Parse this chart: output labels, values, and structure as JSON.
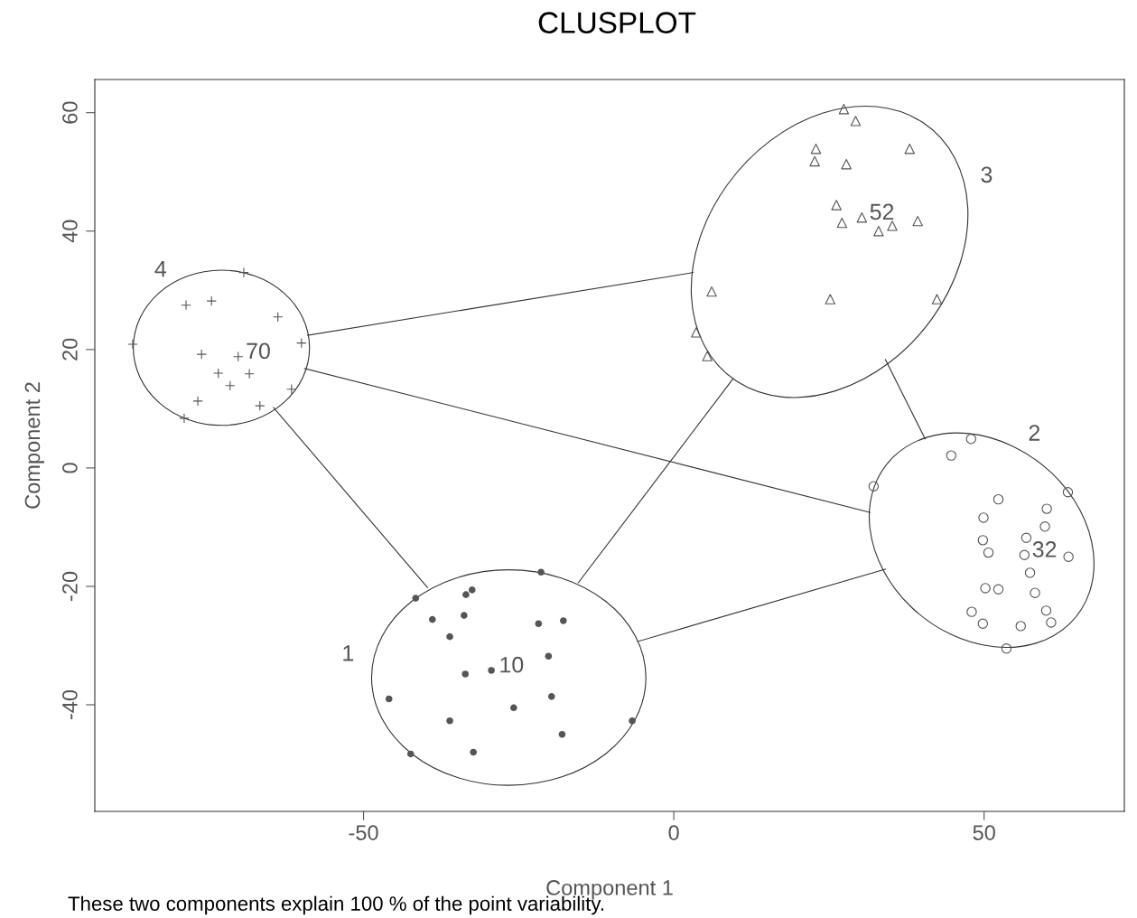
{
  "chart_data": {
    "type": "scatter",
    "title": "CLUSPLOT",
    "xlabel": "Component 1",
    "ylabel": "Component 2",
    "xlim": [
      -93.3,
      72.6
    ],
    "ylim": [
      -58.0,
      65.6
    ],
    "xticks": [
      -50,
      0,
      50
    ],
    "yticks": [
      -40,
      -20,
      0,
      20,
      40,
      60
    ],
    "grid": false,
    "legend": false,
    "series": [
      {
        "marker": "circle",
        "color": "#555555",
        "x": [
          -21.4,
          -41.6,
          -33.5,
          -32.5,
          -38.9,
          -33.8,
          -21.8,
          -17.8,
          -36.1,
          -20.2,
          -33.6,
          -29.4,
          -19.7,
          -45.9,
          -25.8,
          -36.1,
          -18.0,
          -6.7,
          -42.4,
          -32.3
        ],
        "values": [
          -17.6,
          -22.0,
          -21.4,
          -20.6,
          -25.6,
          -24.9,
          -26.3,
          -25.8,
          -28.5,
          -31.8,
          -34.8,
          -34.2,
          -38.6,
          -39.0,
          -40.5,
          -42.7,
          -45.0,
          -42.7,
          -48.3,
          -48.0
        ]
      },
      {
        "marker": "circle",
        "color": "#555555",
        "x": [
          47.9,
          44.7,
          32.2,
          63.5,
          52.3,
          60.1,
          49.9,
          59.8,
          56.8,
          49.8,
          50.7,
          56.5,
          63.6,
          57.4,
          50.2,
          52.3,
          58.2,
          48.0,
          60.0,
          49.8,
          60.8,
          55.9,
          53.6
        ],
        "values": [
          4.9,
          2.1,
          -3.1,
          -4.1,
          -5.3,
          -6.9,
          -8.4,
          -9.9,
          -11.8,
          -12.2,
          -14.3,
          -14.7,
          -15.0,
          -17.7,
          -20.3,
          -20.5,
          -21.1,
          -24.3,
          -24.1,
          -26.3,
          -26.1,
          -26.7,
          -30.5
        ]
      },
      {
        "marker": "triangle",
        "color": "#555555",
        "x": [
          27.4,
          29.3,
          22.9,
          38.0,
          22.7,
          27.8,
          26.2,
          30.3,
          27.1,
          35.2,
          39.3,
          33.0,
          25.2,
          42.4,
          6.1,
          3.6,
          5.4
        ],
        "values": [
          60.6,
          58.6,
          53.9,
          53.9,
          51.8,
          51.3,
          44.4,
          42.3,
          41.4,
          40.9,
          41.7,
          40.0,
          28.5,
          28.5,
          29.8,
          22.9,
          18.9
        ]
      },
      {
        "marker": "cross",
        "color": "#555555",
        "x": [
          -69.3,
          -74.5,
          -78.6,
          -63.8,
          -60.0,
          -87.2,
          -76.1,
          -70.2,
          -73.4,
          -68.4,
          -71.5,
          -76.7,
          -61.6,
          -66.7,
          -78.9
        ],
        "values": [
          33.0,
          28.2,
          27.5,
          25.5,
          21.1,
          20.9,
          19.2,
          18.8,
          16.0,
          15.9,
          13.9,
          11.3,
          13.3,
          10.5,
          8.4
        ]
      },
      {
        "type": "line",
        "marker": "none",
        "color": "#333333",
        "x": [
          -59.0,
          3.1
        ],
        "values": [
          22.4,
          33.0
        ]
      },
      {
        "type": "line",
        "marker": "none",
        "color": "#333333",
        "x": [
          -59.5,
          31.6
        ],
        "values": [
          16.8,
          -7.5
        ]
      },
      {
        "type": "line",
        "marker": "none",
        "color": "#333333",
        "x": [
          -64.5,
          -39.7
        ],
        "values": [
          10.2,
          -20.2
        ]
      },
      {
        "type": "line",
        "marker": "none",
        "color": "#333333",
        "x": [
          -15.4,
          9.5
        ],
        "values": [
          -19.4,
          15.0
        ]
      },
      {
        "type": "line",
        "marker": "none",
        "color": "#333333",
        "x": [
          -5.8,
          34.1
        ],
        "values": [
          -29.3,
          -17.1
        ]
      },
      {
        "type": "line",
        "marker": "none",
        "color": "#333333",
        "x": [
          34.1,
          40.5
        ],
        "values": [
          18.3,
          4.9
        ]
      }
    ],
    "annotations": [
      "1",
      "2",
      "3",
      "4",
      {
        "text": "10",
        "x": -29.4,
        "y": -34.2
      },
      {
        "text": "32",
        "x": 56.5,
        "y": -14.7
      },
      {
        "text": "52",
        "x": 30.3,
        "y": 42.3
      },
      {
        "text": "70",
        "x": -70.2,
        "y": 18.8
      },
      "These two components explain 100 % of the point variability."
    ]
  }
}
